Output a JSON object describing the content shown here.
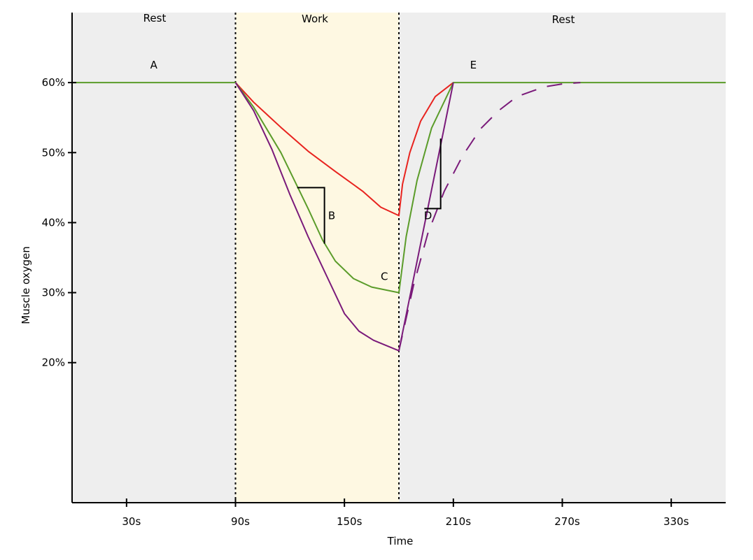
{
  "chart_data": {
    "type": "line",
    "title": "",
    "xlabel": "Time",
    "ylabel": "Muscle oxygen",
    "xlim": [
      0,
      360
    ],
    "ylim": [
      0,
      70
    ],
    "x_ticks": [
      {
        "value": 30,
        "label": "30s"
      },
      {
        "value": 90,
        "label": "90s"
      },
      {
        "value": 150,
        "label": "150s"
      },
      {
        "value": 210,
        "label": "210s"
      },
      {
        "value": 270,
        "label": "270s"
      },
      {
        "value": 330,
        "label": "330s"
      }
    ],
    "y_ticks": [
      {
        "value": 20,
        "label": "20%"
      },
      {
        "value": 30,
        "label": "30%"
      },
      {
        "value": 40,
        "label": "40%"
      },
      {
        "value": 50,
        "label": "50%"
      },
      {
        "value": 60,
        "label": "60%"
      }
    ],
    "grid": false,
    "phases": [
      {
        "label": "Rest",
        "start": 0,
        "end": 90,
        "color": "#eeeeee"
      },
      {
        "label": "Work",
        "start": 90,
        "end": 180,
        "color": "#fef8e2"
      },
      {
        "label": "Rest",
        "start": 180,
        "end": 360,
        "color": "#eeeeee"
      }
    ],
    "phase_boundaries": [
      90,
      180
    ],
    "series": [
      {
        "color": "#e8231f",
        "dash": false,
        "points": [
          [
            90,
            60
          ],
          [
            100,
            57.2
          ],
          [
            115,
            53.6
          ],
          [
            130,
            50.2
          ],
          [
            145,
            47.3
          ],
          [
            160,
            44.5
          ],
          [
            170,
            42.2
          ],
          [
            180,
            41
          ],
          [
            180,
            41
          ],
          [
            182,
            45.5
          ],
          [
            186,
            50
          ],
          [
            192,
            54.5
          ],
          [
            200,
            58
          ],
          [
            210,
            60
          ]
        ]
      },
      {
        "color": "#5b9c2a",
        "dash": false,
        "points": [
          [
            0,
            60
          ],
          [
            90,
            60
          ],
          [
            100,
            56.5
          ],
          [
            115,
            50
          ],
          [
            130,
            42
          ],
          [
            138,
            37.5
          ],
          [
            145,
            34.5
          ],
          [
            155,
            32
          ],
          [
            165,
            30.8
          ],
          [
            180,
            30
          ],
          [
            180,
            30
          ],
          [
            184,
            38
          ],
          [
            190,
            46
          ],
          [
            198,
            53.5
          ],
          [
            210,
            60
          ],
          [
            360,
            60
          ]
        ]
      },
      {
        "color": "#7a1a7a",
        "dash": false,
        "points": [
          [
            90,
            60
          ],
          [
            100,
            56
          ],
          [
            110,
            50.5
          ],
          [
            120,
            44
          ],
          [
            130,
            38
          ],
          [
            140,
            32.5
          ],
          [
            150,
            27
          ],
          [
            158,
            24.5
          ],
          [
            166,
            23.2
          ],
          [
            180,
            21.7
          ],
          [
            210,
            60
          ]
        ]
      },
      {
        "color": "#7a1a7a",
        "dash": true,
        "points": [
          [
            180,
            21.7
          ],
          [
            188,
            31
          ],
          [
            196,
            38.5
          ],
          [
            205,
            44.5
          ],
          [
            215,
            49.5
          ],
          [
            225,
            53.4
          ],
          [
            235,
            56
          ],
          [
            245,
            58
          ],
          [
            260,
            59.4
          ],
          [
            270,
            59.8
          ],
          [
            280,
            60
          ]
        ]
      }
    ],
    "annotations": [
      {
        "label": "A",
        "x": 45,
        "y": 62
      },
      {
        "label": "B",
        "x": 143,
        "y": 40.5
      },
      {
        "label": "C",
        "x": 172,
        "y": 31.8
      },
      {
        "label": "D",
        "x": 196,
        "y": 40.5
      },
      {
        "label": "E",
        "x": 221,
        "y": 62
      }
    ],
    "slope_markers": [
      {
        "x1": 124,
        "x2": 139,
        "y1": 45,
        "y2": 37
      },
      {
        "x1": 194,
        "x2": 203,
        "y1": 52,
        "y2": 42
      }
    ]
  }
}
